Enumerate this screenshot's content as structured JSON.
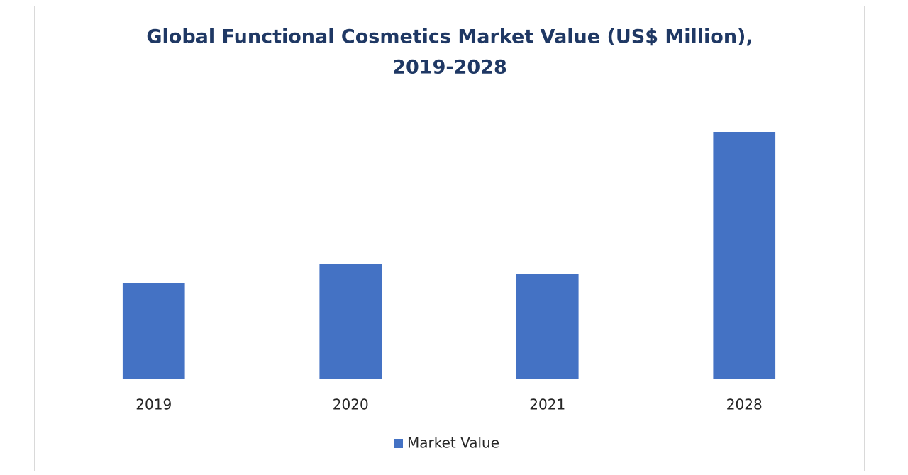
{
  "chart_data": {
    "type": "bar",
    "title": [
      "Global Functional Cosmetics Market Value (US$ Million),",
      "2019-2028"
    ],
    "categories": [
      "2019",
      "2020",
      "2021",
      "2028"
    ],
    "series": [
      {
        "name": "Market Value",
        "color": "#4472c4",
        "values": [
          135,
          161,
          147,
          348
        ]
      }
    ],
    "ylim": [
      0,
      400
    ],
    "legend": "bottom"
  }
}
